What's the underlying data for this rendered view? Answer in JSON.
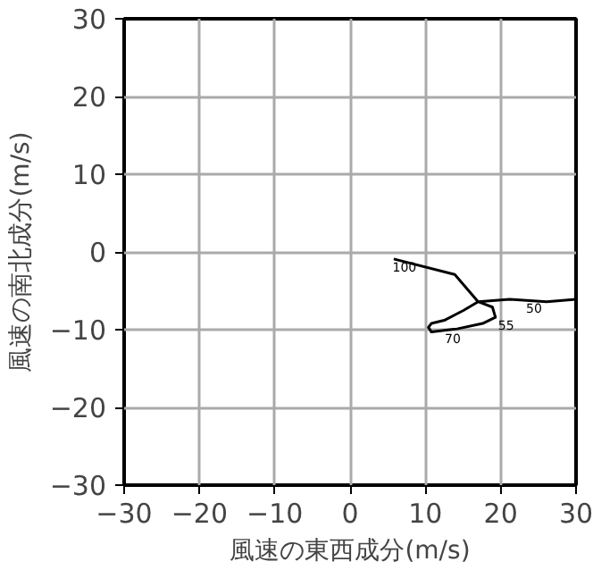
{
  "chart_data": {
    "type": "line",
    "xlabel": "風速の東西成分(m/s)",
    "ylabel": "風速の南北成分(m/s)",
    "x": [
      30,
      26.1,
      21.2,
      17,
      18.9,
      19.3,
      17.6,
      14.2,
      10.8,
      10.4,
      10.8,
      12.5,
      15.1,
      17,
      13.9,
      5.8
    ],
    "series": [
      {
        "color": "#000000",
        "values": [
          -6.1,
          -6.4,
          -6.1,
          -6.4,
          -7.1,
          -8.4,
          -9.2,
          -9.9,
          -10.3,
          -9.7,
          -9.2,
          -8.8,
          -7.5,
          -6.4,
          -2.9,
          -0.9
        ]
      }
    ],
    "annotations": [
      {
        "text": "100",
        "x": 5.8,
        "y": -0.9
      },
      {
        "text": "70",
        "x": 12.2,
        "y": -10.1
      },
      {
        "text": "55",
        "x": 19.3,
        "y": -8.4
      },
      {
        "text": "50",
        "x": 23,
        "y": -6.2
      }
    ],
    "xlim": [
      -30,
      30
    ],
    "ylim": [
      -30,
      30
    ],
    "xticks": [
      -30,
      -20,
      -10,
      0,
      10,
      20,
      30
    ],
    "yticks": [
      -30,
      -20,
      -10,
      0,
      10,
      20,
      30
    ],
    "grid": true,
    "marker": "none",
    "line_style": "solid"
  }
}
